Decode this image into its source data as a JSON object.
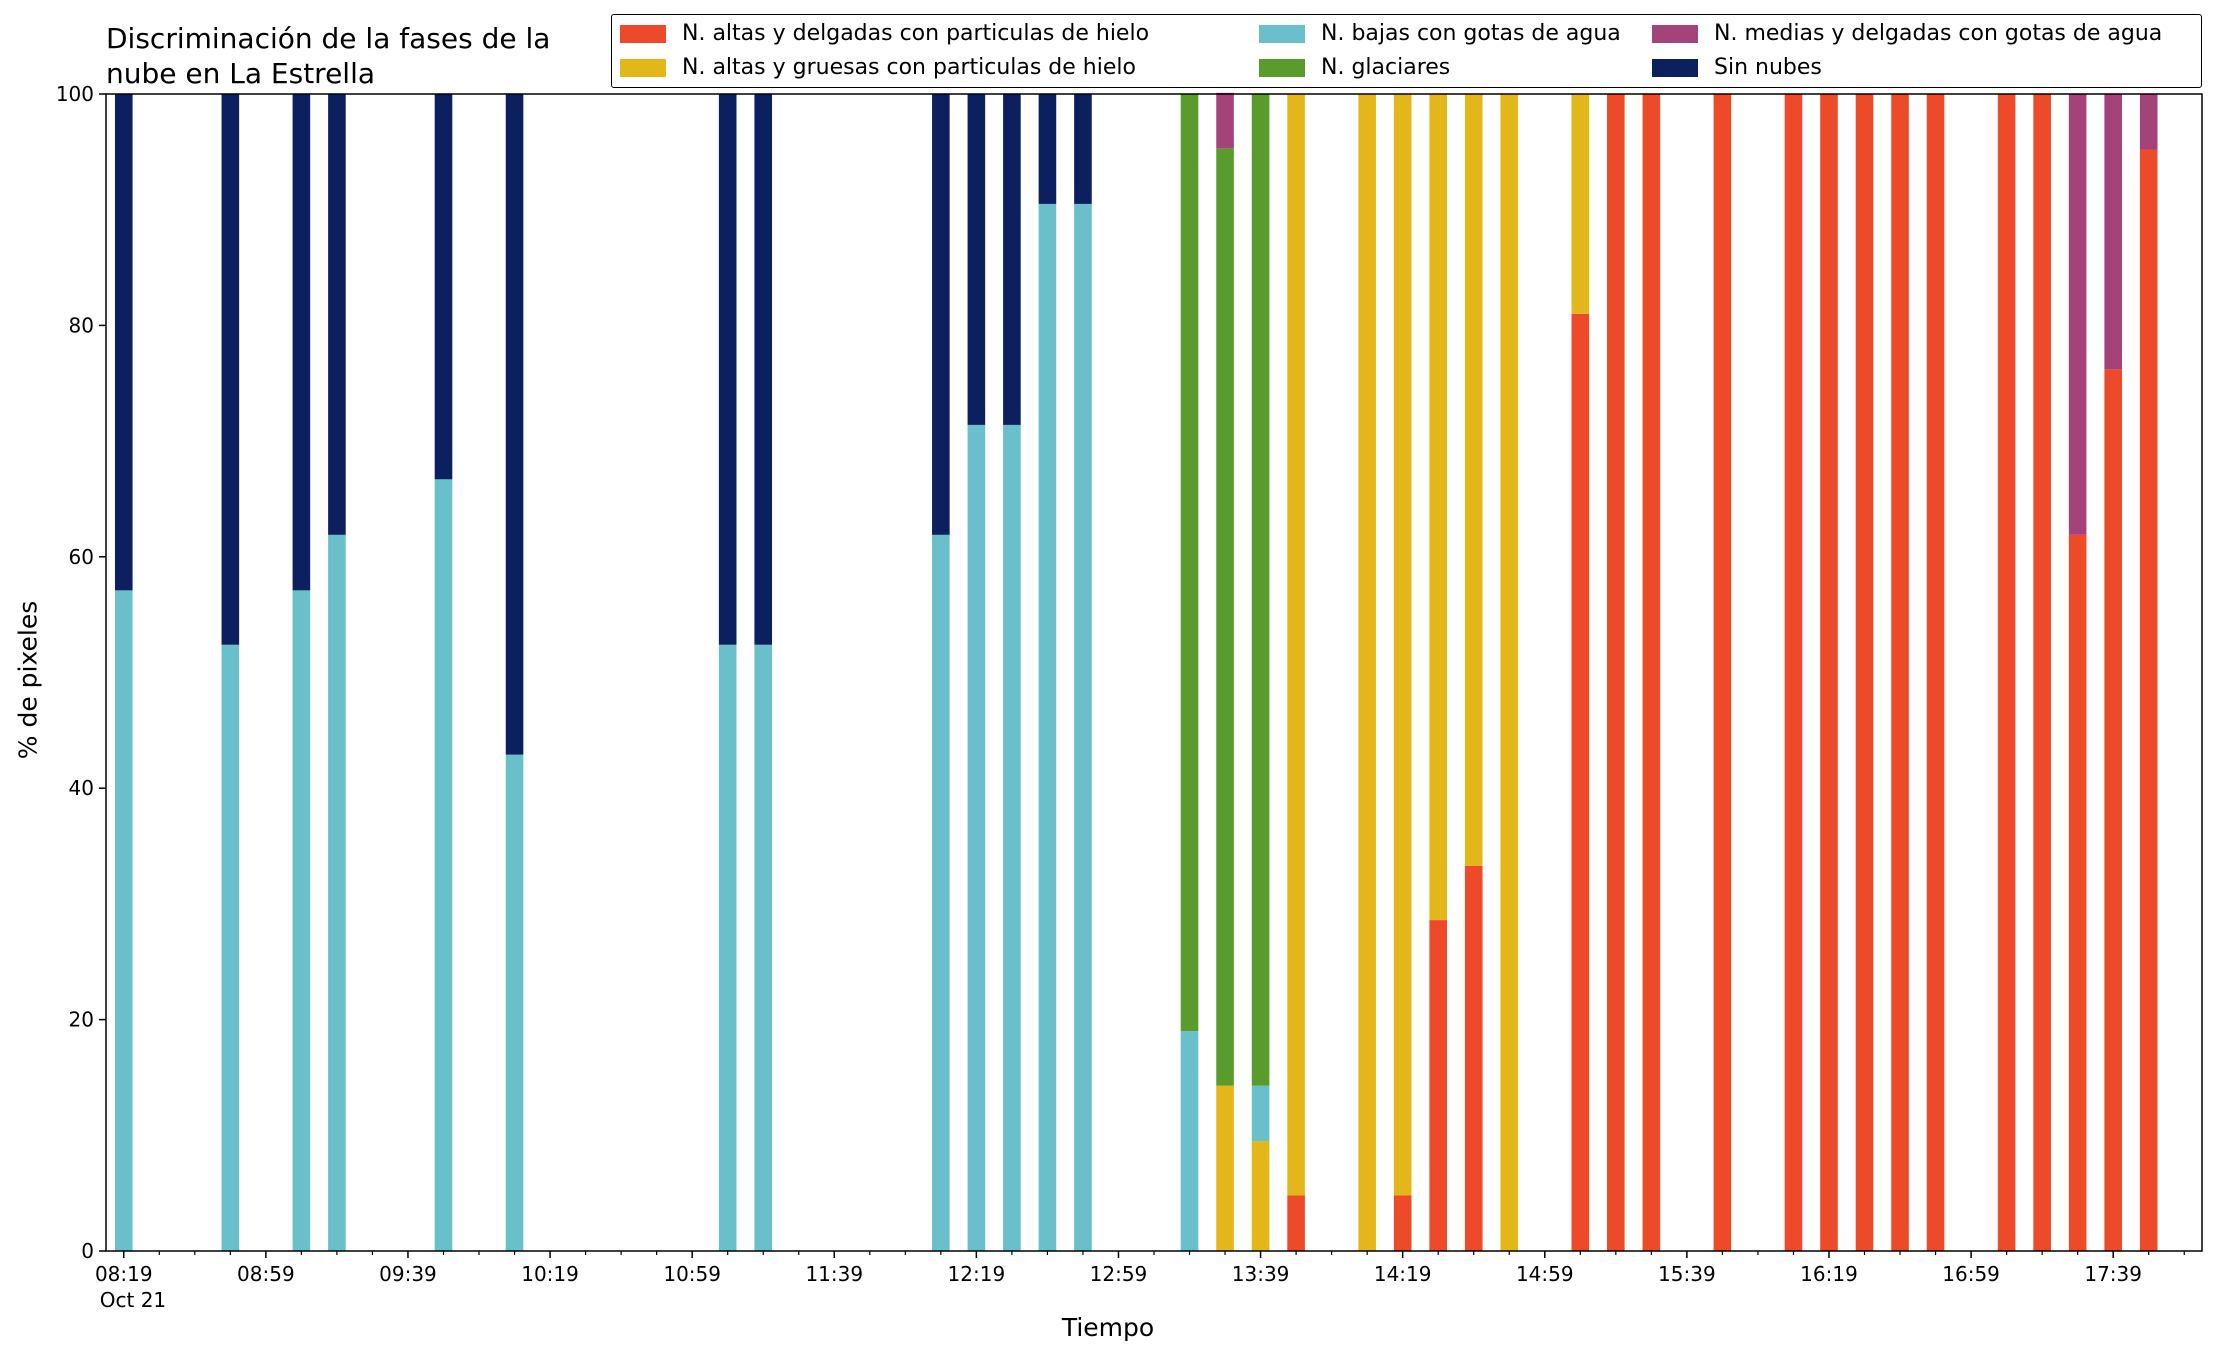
{
  "chart_data": {
    "type": "bar",
    "stacked": true,
    "title": "Discriminación de la fases de la\nnube en La Estrella",
    "title_lines": [
      "Discriminación de la fases de la",
      "nube en La Estrella"
    ],
    "xlabel": "Tiempo",
    "ylabel": "% de pixeles",
    "ylim": [
      0,
      100
    ],
    "yticks": [
      "0",
      "20",
      "40",
      "60",
      "80",
      "100"
    ],
    "xlim_minutes_from_0819": [
      -5,
      585
    ],
    "xticks": [
      "08:19",
      "08:59",
      "09:39",
      "10:19",
      "10:59",
      "11:39",
      "12:19",
      "12:59",
      "13:39",
      "14:19",
      "14:59",
      "15:39",
      "16:19",
      "16:59",
      "17:39"
    ],
    "xtick_date": "Oct 21",
    "grid": false,
    "legend_position": "top-right",
    "categories": [
      "08:19",
      "08:49",
      "09:09",
      "09:19",
      "09:49",
      "10:09",
      "11:09",
      "11:19",
      "12:09",
      "12:19",
      "12:29",
      "12:39",
      "12:49",
      "13:19",
      "13:29",
      "13:39",
      "13:49",
      "14:09",
      "14:19",
      "14:29",
      "14:39",
      "14:49",
      "15:09",
      "15:19",
      "15:29",
      "15:49",
      "16:09",
      "16:19",
      "16:29",
      "16:39",
      "16:49",
      "17:09",
      "17:19",
      "17:29",
      "17:39",
      "17:49"
    ],
    "series": [
      {
        "name": "N. altas y delgadas con particulas de hielo",
        "color": "#ed4a2a",
        "values": [
          0,
          0,
          0,
          0,
          0,
          0,
          0,
          0,
          0,
          0,
          0,
          0,
          0,
          0,
          0,
          0,
          4.8,
          0,
          4.8,
          28.6,
          33.3,
          0,
          81,
          100,
          100,
          100,
          100,
          100,
          100,
          100,
          100,
          100,
          100,
          61.9,
          76.2,
          95.2
        ]
      },
      {
        "name": "N. altas y gruesas con particulas de hielo",
        "color": "#e3b619",
        "values": [
          0,
          0,
          0,
          0,
          0,
          0,
          0,
          0,
          0,
          0,
          0,
          0,
          0,
          0,
          14.3,
          9.5,
          95.2,
          100,
          95.2,
          71.4,
          66.7,
          100,
          19,
          0,
          0,
          0,
          0,
          0,
          0,
          0,
          0,
          0,
          0,
          0,
          0,
          0
        ]
      },
      {
        "name": "N. bajas con gotas de agua",
        "color": "#69bfca",
        "values": [
          57.1,
          52.4,
          57.1,
          61.9,
          66.7,
          42.9,
          52.4,
          52.4,
          61.9,
          71.4,
          71.4,
          90.5,
          90.5,
          19,
          0,
          4.8,
          0,
          0,
          0,
          0,
          0,
          0,
          0,
          0,
          0,
          0,
          0,
          0,
          0,
          0,
          0,
          0,
          0,
          0,
          0,
          0
        ]
      },
      {
        "name": "N. glaciares",
        "color": "#5a9c2c",
        "values": [
          0,
          0,
          0,
          0,
          0,
          0,
          0,
          0,
          0,
          0,
          0,
          0,
          0,
          81,
          81,
          85.7,
          0,
          0,
          0,
          0,
          0,
          0,
          0,
          0,
          0,
          0,
          0,
          0,
          0,
          0,
          0,
          0,
          0,
          0,
          0,
          0
        ]
      },
      {
        "name": "N. medias y delgadas con gotas de agua",
        "color": "#a4437a",
        "values": [
          0,
          0,
          0,
          0,
          0,
          0,
          0,
          0,
          0,
          0,
          0,
          0,
          0,
          0,
          4.8,
          0,
          0,
          0,
          0,
          0,
          0,
          0,
          0,
          0,
          0,
          0,
          0,
          0,
          0,
          0,
          0,
          0,
          0,
          38.1,
          23.8,
          4.8
        ]
      },
      {
        "name": "Sin nubes",
        "color": "#0c1f5e",
        "values": [
          42.9,
          47.6,
          42.9,
          38.1,
          33.3,
          57.1,
          47.6,
          47.6,
          38.1,
          28.6,
          28.6,
          9.5,
          9.5,
          0,
          0,
          0,
          0,
          0,
          0,
          0,
          0,
          0,
          0,
          0,
          0,
          0,
          0,
          0,
          0,
          0,
          0,
          0,
          0,
          0,
          0,
          0
        ]
      }
    ],
    "stack_order": [
      "N. altas y delgadas con particulas de hielo",
      "N. altas y gruesas con particulas de hielo",
      "N. bajas con gotas de agua",
      "N. glaciares",
      "N. medias y delgadas con gotas de agua",
      "Sin nubes"
    ]
  }
}
